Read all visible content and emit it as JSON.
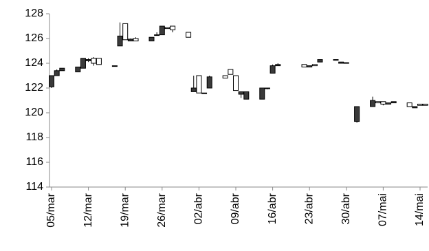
{
  "chart_data": {
    "type": "candlestick",
    "categories": [
      "05/mar",
      null,
      null,
      null,
      null,
      null,
      null,
      "12/mar",
      null,
      null,
      null,
      null,
      null,
      null,
      "19/mar",
      null,
      null,
      null,
      null,
      null,
      null,
      "26/mar",
      null,
      null,
      null,
      null,
      null,
      null,
      "02/abr",
      null,
      null,
      null,
      null,
      null,
      null,
      "09/abr",
      null,
      null,
      null,
      null,
      null,
      null,
      "16/abr",
      null,
      null,
      null,
      null,
      null,
      null,
      "23/abr",
      null,
      null,
      null,
      null,
      null,
      null,
      "30/abr",
      null,
      null,
      null,
      null,
      null,
      null,
      "07/mai",
      null,
      null,
      null,
      null,
      null,
      null,
      "14/mai",
      null
    ],
    "open": [
      123,
      123.4,
      123.6,
      null,
      null,
      123.7,
      124.4,
      124.3,
      124,
      123.9,
      null,
      null,
      123.8,
      126.2,
      125.9,
      125.95,
      125.8,
      null,
      null,
      126.1,
      126.3,
      127,
      126.8,
      126.7,
      null,
      null,
      126.1,
      122,
      121.6,
      121.6,
      122.9,
      null,
      null,
      122.8,
      123.1,
      121.8,
      121.7,
      121.7,
      null,
      null,
      122,
      122,
      123.8,
      123.9,
      null,
      null,
      null,
      null,
      123.7,
      123.8,
      123.8,
      124.3,
      null,
      null,
      124.3,
      124.1,
      124.05,
      null,
      120.5,
      null,
      null,
      121,
      120.8,
      120.7,
      120.8,
      120.9,
      null,
      null,
      120.5,
      120.5,
      120.6,
      120.6
    ],
    "high": [
      123,
      123.5,
      123.6,
      null,
      null,
      123.7,
      124.4,
      124.4,
      124.5,
      124.4,
      null,
      null,
      123.8,
      127.3,
      127.2,
      126,
      126.1,
      null,
      null,
      126.1,
      126.5,
      127,
      126.9,
      127,
      null,
      null,
      126.5,
      123,
      123,
      121.6,
      123,
      null,
      null,
      123,
      123.5,
      123,
      121.7,
      121.7,
      null,
      null,
      122,
      122,
      123.9,
      124,
      null,
      null,
      null,
      null,
      123.9,
      123.8,
      123.9,
      124.3,
      null,
      null,
      124.3,
      124.1,
      124.05,
      null,
      120.5,
      null,
      null,
      121.3,
      120.9,
      120.9,
      120.8,
      120.9,
      null,
      null,
      120.8,
      120.5,
      120.7,
      120.7
    ],
    "low": [
      122,
      123,
      123.4,
      null,
      null,
      123.3,
      123.6,
      124.1,
      123.8,
      123.9,
      null,
      null,
      123.8,
      125.4,
      125.9,
      125.8,
      125.8,
      null,
      null,
      125.8,
      126.3,
      126.3,
      126.8,
      126.5,
      null,
      null,
      126.1,
      121.7,
      121.6,
      121.6,
      122,
      null,
      null,
      122.8,
      123.1,
      121.8,
      121.2,
      121.1,
      null,
      null,
      121.1,
      121.9,
      123.2,
      123.8,
      null,
      null,
      null,
      null,
      123.7,
      123.7,
      123.8,
      124.1,
      null,
      null,
      124.3,
      124,
      124,
      null,
      119.2,
      null,
      null,
      120.5,
      120.8,
      120.6,
      120.7,
      120.8,
      null,
      null,
      120.5,
      120.4,
      120.6,
      120.6
    ],
    "close": [
      122.1,
      123,
      123.4,
      null,
      null,
      123.3,
      123.6,
      124.2,
      124.4,
      124.4,
      null,
      null,
      123.8,
      125.4,
      127.2,
      125.8,
      126,
      null,
      null,
      125.8,
      126.3,
      126.3,
      126.9,
      127,
      null,
      null,
      126.5,
      121.7,
      123,
      121.6,
      122,
      null,
      null,
      123,
      123.5,
      123,
      121.5,
      121.1,
      null,
      null,
      121.1,
      122,
      123.2,
      123.8,
      null,
      null,
      null,
      null,
      123.9,
      123.7,
      123.9,
      124.1,
      null,
      null,
      124.3,
      124,
      124,
      null,
      119.3,
      null,
      null,
      120.5,
      120.9,
      120.9,
      120.7,
      120.8,
      null,
      null,
      120.8,
      120.4,
      120.7,
      120.7
    ],
    "up_color": "#ffffff",
    "down_color": "#3a3a3a",
    "ylim": [
      114,
      128
    ],
    "yticks": [
      114,
      116,
      118,
      120,
      122,
      124,
      126,
      128
    ]
  }
}
